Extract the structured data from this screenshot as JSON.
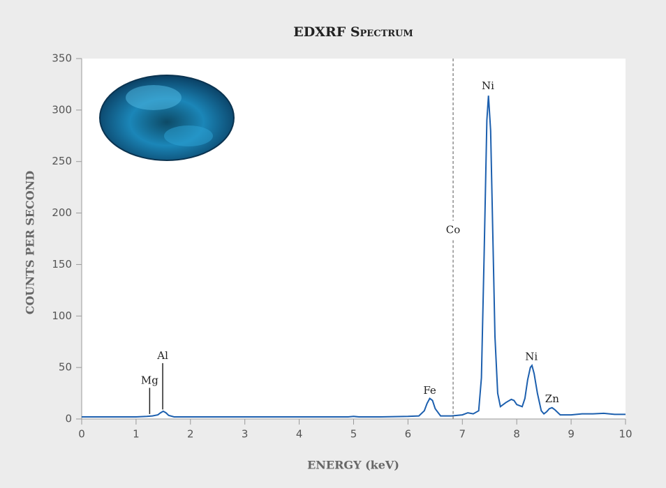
{
  "chart_data": {
    "type": "line",
    "title": "EDXRF Spectrum",
    "x_label": "ENERGY (keV)",
    "y_label": "COUNTS PER SECOND",
    "xlim": [
      0,
      10
    ],
    "xticks": [
      0,
      1,
      2,
      3,
      4,
      5,
      6,
      7,
      8,
      9,
      10
    ],
    "ylim": [
      0,
      350
    ],
    "yticks": [
      0,
      50,
      100,
      150,
      200,
      250,
      300,
      350
    ],
    "color": "#1c5fae",
    "x": [
      0,
      0.5,
      1.0,
      1.2,
      1.3,
      1.4,
      1.45,
      1.5,
      1.55,
      1.6,
      1.7,
      2,
      3,
      4,
      4.9,
      5,
      5.1,
      5.5,
      6,
      6.2,
      6.3,
      6.35,
      6.4,
      6.45,
      6.5,
      6.6,
      6.8,
      7.0,
      7.1,
      7.2,
      7.3,
      7.35,
      7.4,
      7.45,
      7.48,
      7.52,
      7.56,
      7.6,
      7.65,
      7.7,
      7.8,
      7.9,
      7.95,
      8.0,
      8.1,
      8.15,
      8.2,
      8.25,
      8.28,
      8.32,
      8.38,
      8.45,
      8.5,
      8.55,
      8.6,
      8.65,
      8.7,
      8.8,
      9,
      9.2,
      9.4,
      9.6,
      9.8,
      10
    ],
    "values": [
      2,
      2,
      2,
      2.5,
      3,
      4,
      6,
      7.5,
      6,
      3.5,
      2,
      2,
      2,
      2,
      2,
      2.5,
      2,
      2,
      2.5,
      3,
      8,
      15,
      20,
      18,
      10,
      3,
      3,
      4,
      6,
      5,
      8,
      40,
      160,
      290,
      314,
      280,
      180,
      80,
      25,
      12,
      16,
      19,
      18,
      14,
      12,
      20,
      38,
      50,
      52,
      44,
      25,
      8,
      5,
      7,
      10,
      11,
      9,
      4,
      4,
      5,
      5,
      5.5,
      4.5,
      4.5
    ],
    "annotations": [
      {
        "text": "Mg",
        "x": 1.25,
        "y": 37,
        "pointer": true
      },
      {
        "text": "Al",
        "x": 1.49,
        "y": 61,
        "pointer": true
      },
      {
        "text": "Fe",
        "x": 6.4,
        "y": 27
      },
      {
        "text": "Co",
        "x": 6.83,
        "y": 183,
        "vline": true
      },
      {
        "text": "Ni",
        "x": 7.47,
        "y": 323
      },
      {
        "text": "Ni",
        "x": 8.27,
        "y": 60
      },
      {
        "text": "Zn",
        "x": 8.65,
        "y": 19
      }
    ]
  }
}
